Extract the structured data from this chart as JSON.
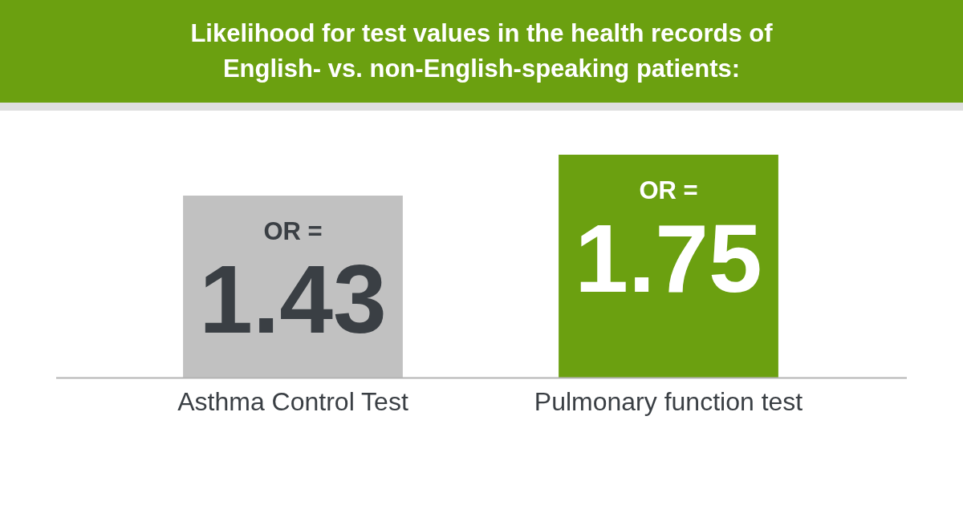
{
  "chart_data": {
    "type": "bar",
    "title": "Likelihood for test values in the health records of English- vs. non-English-speaking patients:",
    "categories": [
      "Asthma Control Test",
      "Pulmonary function test"
    ],
    "values": [
      1.43,
      1.75
    ],
    "colors": [
      "#c1c1c1",
      "#6ba010"
    ],
    "value_labels": [
      "OR = 1.43",
      "OR = 1.75"
    ]
  }
}
